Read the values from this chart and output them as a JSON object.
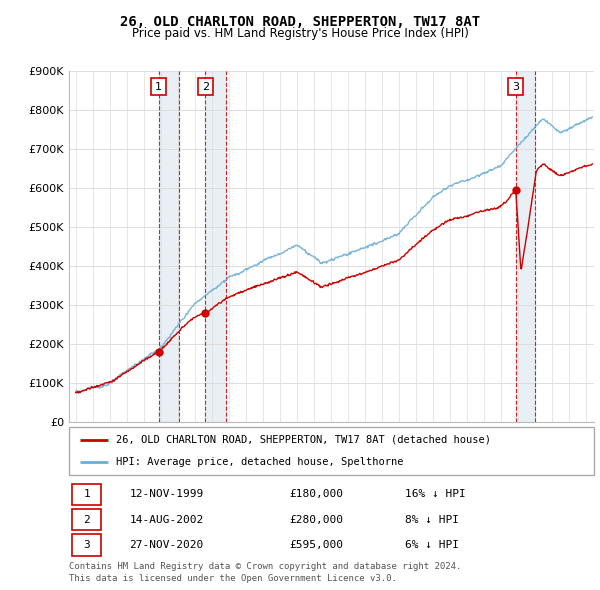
{
  "title": "26, OLD CHARLTON ROAD, SHEPPERTON, TW17 8AT",
  "subtitle": "Price paid vs. HM Land Registry's House Price Index (HPI)",
  "ylim": [
    0,
    900000
  ],
  "yticks": [
    0,
    100000,
    200000,
    300000,
    400000,
    500000,
    600000,
    700000,
    800000,
    900000
  ],
  "ytick_labels": [
    "£0",
    "£100K",
    "£200K",
    "£300K",
    "£400K",
    "£500K",
    "£600K",
    "£700K",
    "£800K",
    "£900K"
  ],
  "xlim_start": 1994.6,
  "xlim_end": 2025.5,
  "hpi_color": "#6baed6",
  "price_color": "#cc0000",
  "vline_color": "#cc0000",
  "shade_color": "#d6e4f0",
  "transactions": [
    {
      "num": 1,
      "date": "12-NOV-1999",
      "year": 1999.87,
      "price": 180000,
      "label": "16% ↓ HPI"
    },
    {
      "num": 2,
      "date": "14-AUG-2002",
      "year": 2002.62,
      "price": 280000,
      "label": "8% ↓ HPI"
    },
    {
      "num": 3,
      "date": "27-NOV-2020",
      "year": 2020.9,
      "price": 595000,
      "label": "6% ↓ HPI"
    }
  ],
  "legend_line1": "26, OLD CHARLTON ROAD, SHEPPERTON, TW17 8AT (detached house)",
  "legend_line2": "HPI: Average price, detached house, Spelthorne",
  "footnote1": "Contains HM Land Registry data © Crown copyright and database right 2024.",
  "footnote2": "This data is licensed under the Open Government Licence v3.0.",
  "bg_color": "#ffffff",
  "plot_bg_color": "#ffffff",
  "grid_color": "#dddddd"
}
